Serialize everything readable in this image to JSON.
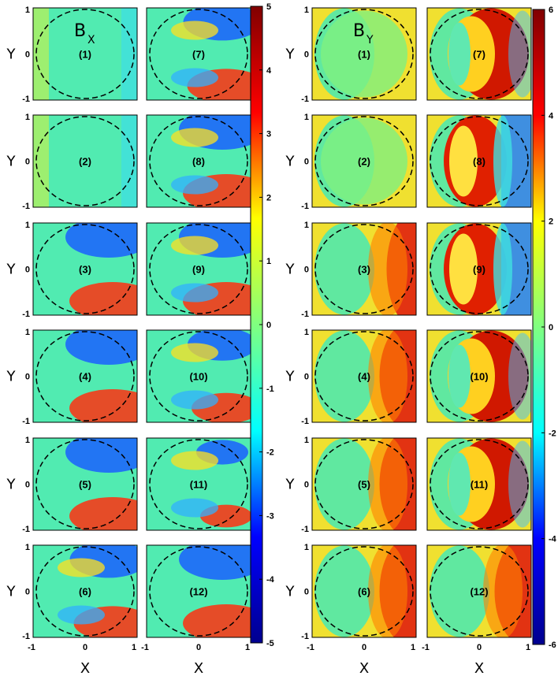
{
  "chart_data": {
    "type": "heatmap",
    "figure_title": "",
    "colormap": [
      "#00008f",
      "#0000ff",
      "#00ffff",
      "#80ff80",
      "#ffff00",
      "#ff0000",
      "#800000"
    ],
    "groups": [
      {
        "id": "bx",
        "title_main": "B",
        "title_sub": "X",
        "xlabel": "X",
        "ylabel": "Y",
        "xlim": [
          -1,
          1
        ],
        "ylim": [
          -1,
          1
        ],
        "colorbar": {
          "range": [
            -5,
            5
          ],
          "ticks": [
            "5",
            "4",
            "3",
            "2",
            "1",
            "0",
            "-1",
            "-2",
            "-3",
            "-4",
            "-5"
          ]
        },
        "panels": [
          {
            "label": "(1)",
            "amp": 0.3,
            "pattern": "bx_early"
          },
          {
            "label": "(2)",
            "amp": 0.6,
            "pattern": "bx_early"
          },
          {
            "label": "(3)",
            "amp": 1.0,
            "pattern": "bx_mid"
          },
          {
            "label": "(4)",
            "amp": 1.0,
            "pattern": "bx_mid"
          },
          {
            "label": "(5)",
            "amp": 1.0,
            "pattern": "bx_mid"
          },
          {
            "label": "(6)",
            "amp": 0.9,
            "pattern": "bx_late"
          },
          {
            "label": "(7)",
            "amp": 0.9,
            "pattern": "bx_late"
          },
          {
            "label": "(8)",
            "amp": 1.0,
            "pattern": "bx_late"
          },
          {
            "label": "(9)",
            "amp": 1.0,
            "pattern": "bx_late"
          },
          {
            "label": "(10)",
            "amp": 0.8,
            "pattern": "bx_late"
          },
          {
            "label": "(11)",
            "amp": 0.6,
            "pattern": "bx_late"
          },
          {
            "label": "(12)",
            "amp": 1.0,
            "pattern": "bx_mid"
          }
        ]
      },
      {
        "id": "by",
        "title_main": "B",
        "title_sub": "Y",
        "xlabel": "X",
        "ylabel": "Y",
        "xlim": [
          -1,
          1
        ],
        "ylim": [
          -1,
          1
        ],
        "colorbar": {
          "range": [
            -6,
            6
          ],
          "ticks": [
            "6",
            "4",
            "2",
            "0",
            "-2",
            "-4",
            "-6"
          ]
        },
        "panels": [
          {
            "label": "(1)",
            "amp": 0.2,
            "pattern": "by_early"
          },
          {
            "label": "(2)",
            "amp": 0.5,
            "pattern": "by_early"
          },
          {
            "label": "(3)",
            "amp": 0.7,
            "pattern": "by_mid"
          },
          {
            "label": "(4)",
            "amp": 0.9,
            "pattern": "by_mid"
          },
          {
            "label": "(5)",
            "amp": 0.9,
            "pattern": "by_mid"
          },
          {
            "label": "(6)",
            "amp": 0.9,
            "pattern": "by_mid"
          },
          {
            "label": "(7)",
            "amp": 1.0,
            "pattern": "by_ring"
          },
          {
            "label": "(8)",
            "amp": 1.0,
            "pattern": "by_dipole"
          },
          {
            "label": "(9)",
            "amp": 1.0,
            "pattern": "by_dipole"
          },
          {
            "label": "(10)",
            "amp": 0.8,
            "pattern": "by_ring"
          },
          {
            "label": "(11)",
            "amp": 1.0,
            "pattern": "by_ring"
          },
          {
            "label": "(12)",
            "amp": 0.9,
            "pattern": "by_mid"
          }
        ]
      }
    ],
    "xtick_labels": [
      "-1",
      "0",
      "1"
    ],
    "ytick_labels": [
      "1",
      "0",
      "-1"
    ],
    "boundary": "dashed circle of unit radius"
  }
}
